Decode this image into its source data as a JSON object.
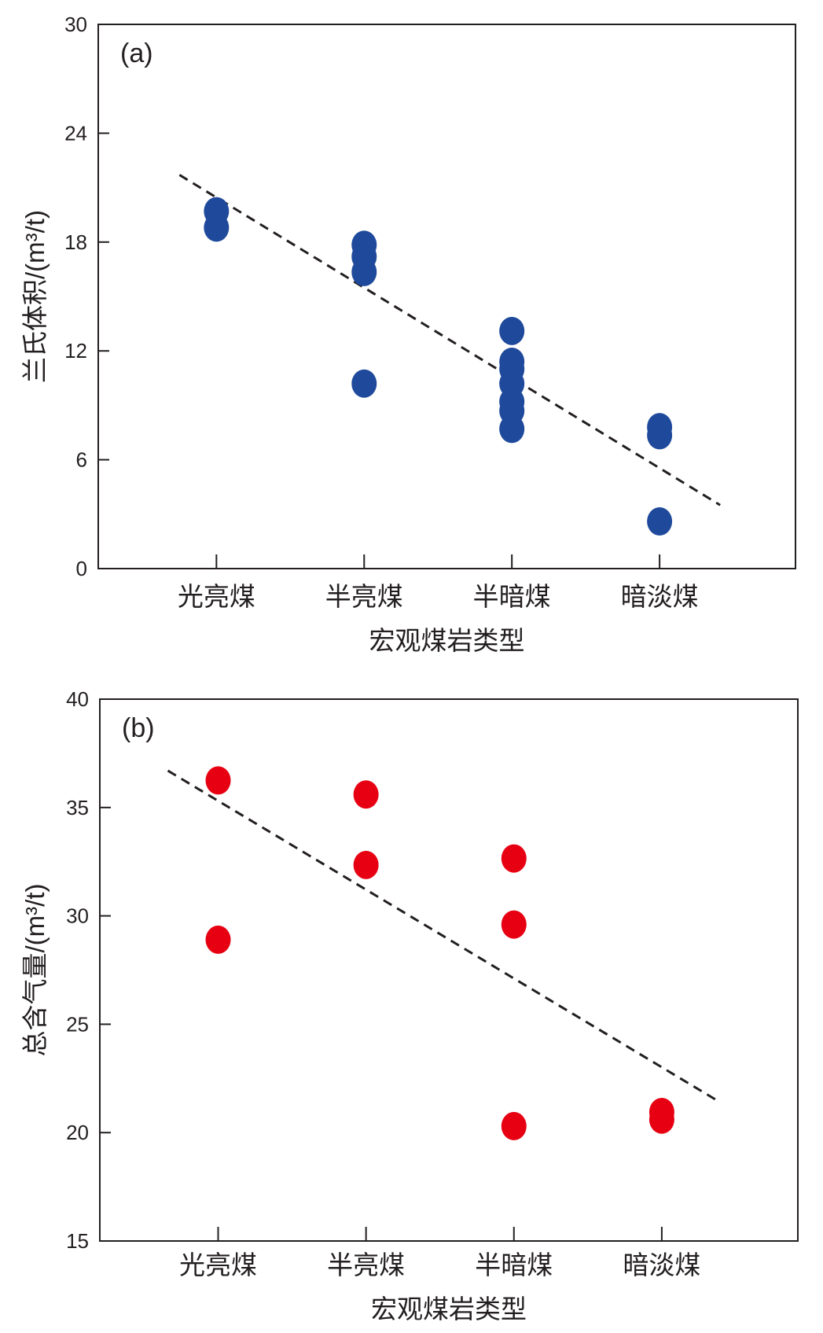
{
  "chart_data": [
    {
      "type": "scatter",
      "panel_label": "(a)",
      "xlabel": "宏观煤岩类型",
      "ylabel": "兰氏体积/(m³/t)",
      "categories": [
        "光亮煤",
        "半亮煤",
        "半暗煤",
        "暗淡煤"
      ],
      "ylim": [
        0,
        30
      ],
      "yticks": [
        "0",
        "6",
        "12",
        "18",
        "24",
        "30"
      ],
      "grid": false,
      "color": "#1f4a9c",
      "points": [
        {
          "category": "光亮煤",
          "y": 19.7
        },
        {
          "category": "光亮煤",
          "y": 18.8
        },
        {
          "category": "半亮煤",
          "y": 17.85
        },
        {
          "category": "半亮煤",
          "y": 17.2
        },
        {
          "category": "半亮煤",
          "y": 16.35
        },
        {
          "category": "半亮煤",
          "y": 10.2
        },
        {
          "category": "半暗煤",
          "y": 13.1
        },
        {
          "category": "半暗煤",
          "y": 11.4
        },
        {
          "category": "半暗煤",
          "y": 11.0
        },
        {
          "category": "半暗煤",
          "y": 10.2
        },
        {
          "category": "半暗煤",
          "y": 9.2
        },
        {
          "category": "半暗煤",
          "y": 8.7
        },
        {
          "category": "半暗煤",
          "y": 7.7
        },
        {
          "category": "暗淡煤",
          "y": 7.8
        },
        {
          "category": "暗淡煤",
          "y": 7.35
        },
        {
          "category": "暗淡煤",
          "y": 2.6
        }
      ],
      "trendline": {
        "style": "dashed",
        "from": {
          "x": 0.75,
          "y": 21.7
        },
        "to": {
          "x": 4.41,
          "y": 3.5
        }
      }
    },
    {
      "type": "scatter",
      "panel_label": "(b)",
      "xlabel": "宏观煤岩类型",
      "ylabel": "总含气量/(m³/t)",
      "categories": [
        "光亮煤",
        "半亮煤",
        "半暗煤",
        "暗淡煤"
      ],
      "ylim": [
        15,
        40
      ],
      "yticks": [
        "15",
        "20",
        "25",
        "30",
        "35",
        "40"
      ],
      "grid": false,
      "color": "#e60012",
      "points": [
        {
          "category": "光亮煤",
          "y": 36.25
        },
        {
          "category": "光亮煤",
          "y": 28.9
        },
        {
          "category": "半亮煤",
          "y": 35.6
        },
        {
          "category": "半亮煤",
          "y": 32.35
        },
        {
          "category": "半暗煤",
          "y": 32.65
        },
        {
          "category": "半暗煤",
          "y": 29.6
        },
        {
          "category": "半暗煤",
          "y": 20.3
        },
        {
          "category": "暗淡煤",
          "y": 20.95
        },
        {
          "category": "暗淡煤",
          "y": 20.6
        }
      ],
      "trendline": {
        "style": "dashed",
        "from": {
          "x": 0.66,
          "y": 36.7
        },
        "to": {
          "x": 4.37,
          "y": 21.5
        }
      }
    }
  ]
}
